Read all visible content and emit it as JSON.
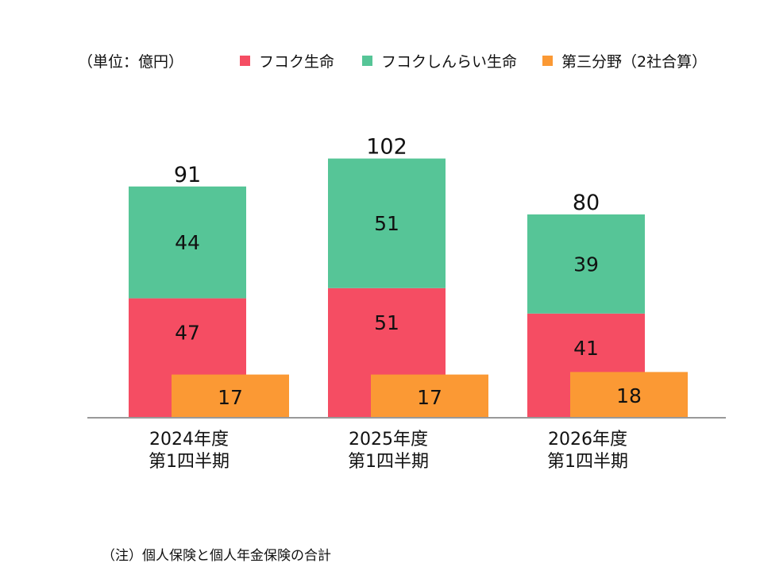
{
  "chart_data": {
    "type": "bar",
    "unit_label": "（単位：億円）",
    "categories": [
      [
        "2024年度",
        "第1四半期"
      ],
      [
        "2025年度",
        "第1四半期"
      ],
      [
        "2026年度",
        "第1四半期"
      ]
    ],
    "stacked_series": [
      {
        "name": "フコク生命",
        "color": "#f54d63",
        "values": [
          47,
          51,
          41
        ]
      },
      {
        "name": "フコクしんらい生命",
        "color": "#56c597",
        "values": [
          44,
          51,
          39
        ]
      }
    ],
    "overlay_series": {
      "name": "第三分野（2社合算）",
      "color": "#fb9934",
      "values": [
        17,
        17,
        18
      ]
    },
    "totals": [
      91,
      102,
      80
    ],
    "ylim": [
      0,
      110
    ]
  },
  "note": "（注）個人保険と個人年金保険の合計"
}
